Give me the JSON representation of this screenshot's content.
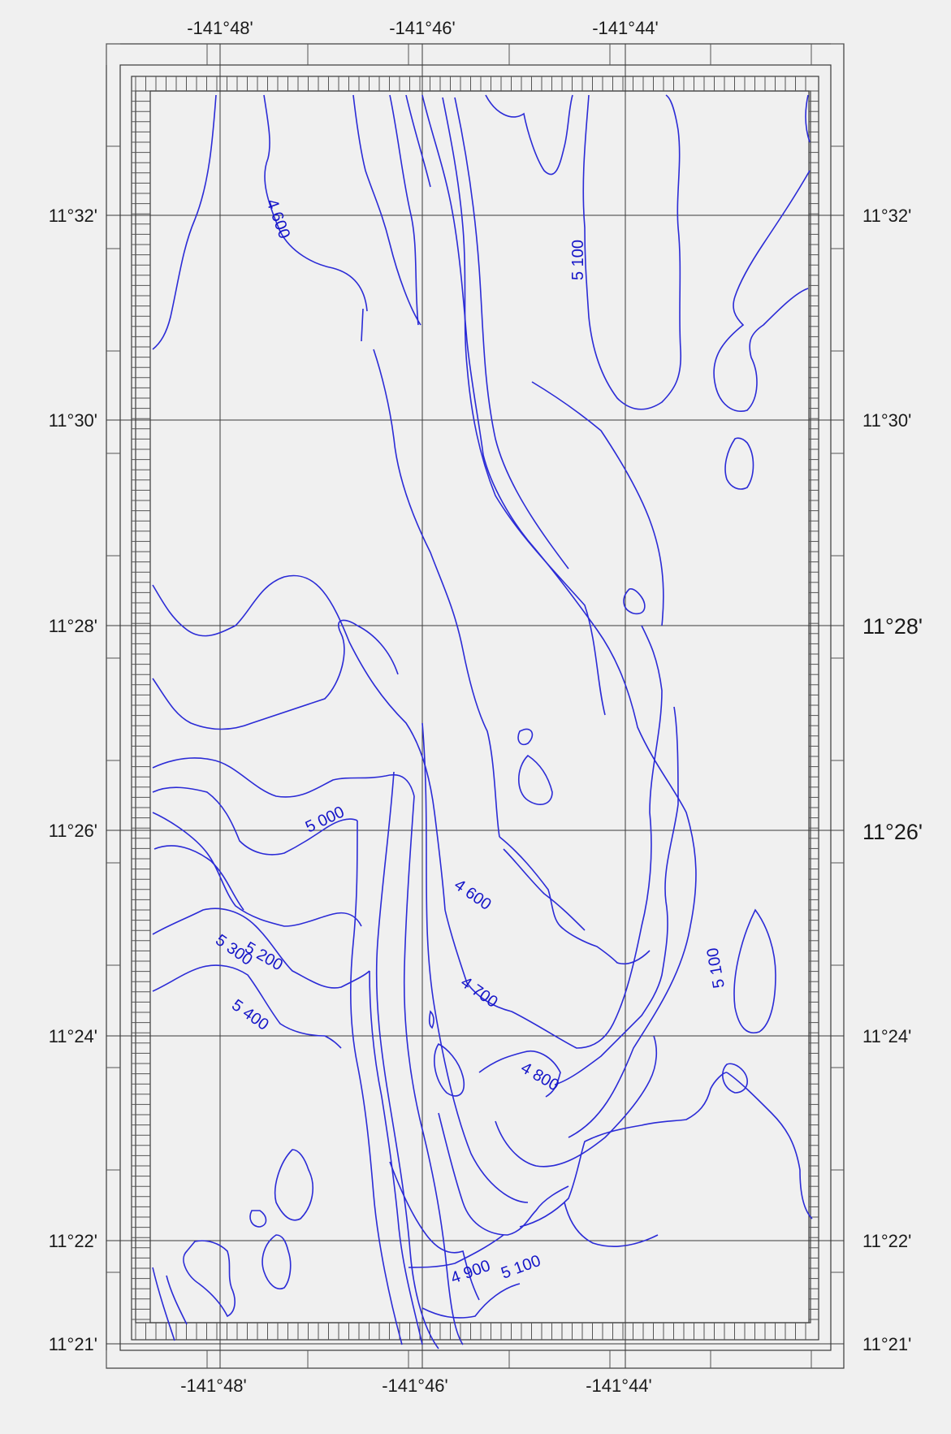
{
  "map": {
    "colors": {
      "contour": "#2b2bd6",
      "contour_label": "#1515c8",
      "grid": "#3a3a3a",
      "background": "#f0f0f0"
    },
    "longitude_labels_top": [
      "-141°48'",
      "-141°46'",
      "-141°44'"
    ],
    "longitude_labels_bottom": [
      "-141°48'",
      "-141°46'",
      "-141°44'"
    ],
    "latitude_labels_left": [
      "11°32'",
      "11°30'",
      "11°28'",
      "11°26'",
      "11°24'",
      "11°22'",
      "11°21'"
    ],
    "latitude_labels_right": [
      "11°32'",
      "11°30'",
      "11°28'",
      "11°26'",
      "11°24'",
      "11°22'",
      "11°21'"
    ],
    "contour_labels": [
      "4 600",
      "5 100",
      "5 000",
      "4 600",
      "5 200",
      "5 300",
      "5 400",
      "4 700",
      "4 800",
      "5 100",
      "4 900",
      "5 100"
    ]
  }
}
